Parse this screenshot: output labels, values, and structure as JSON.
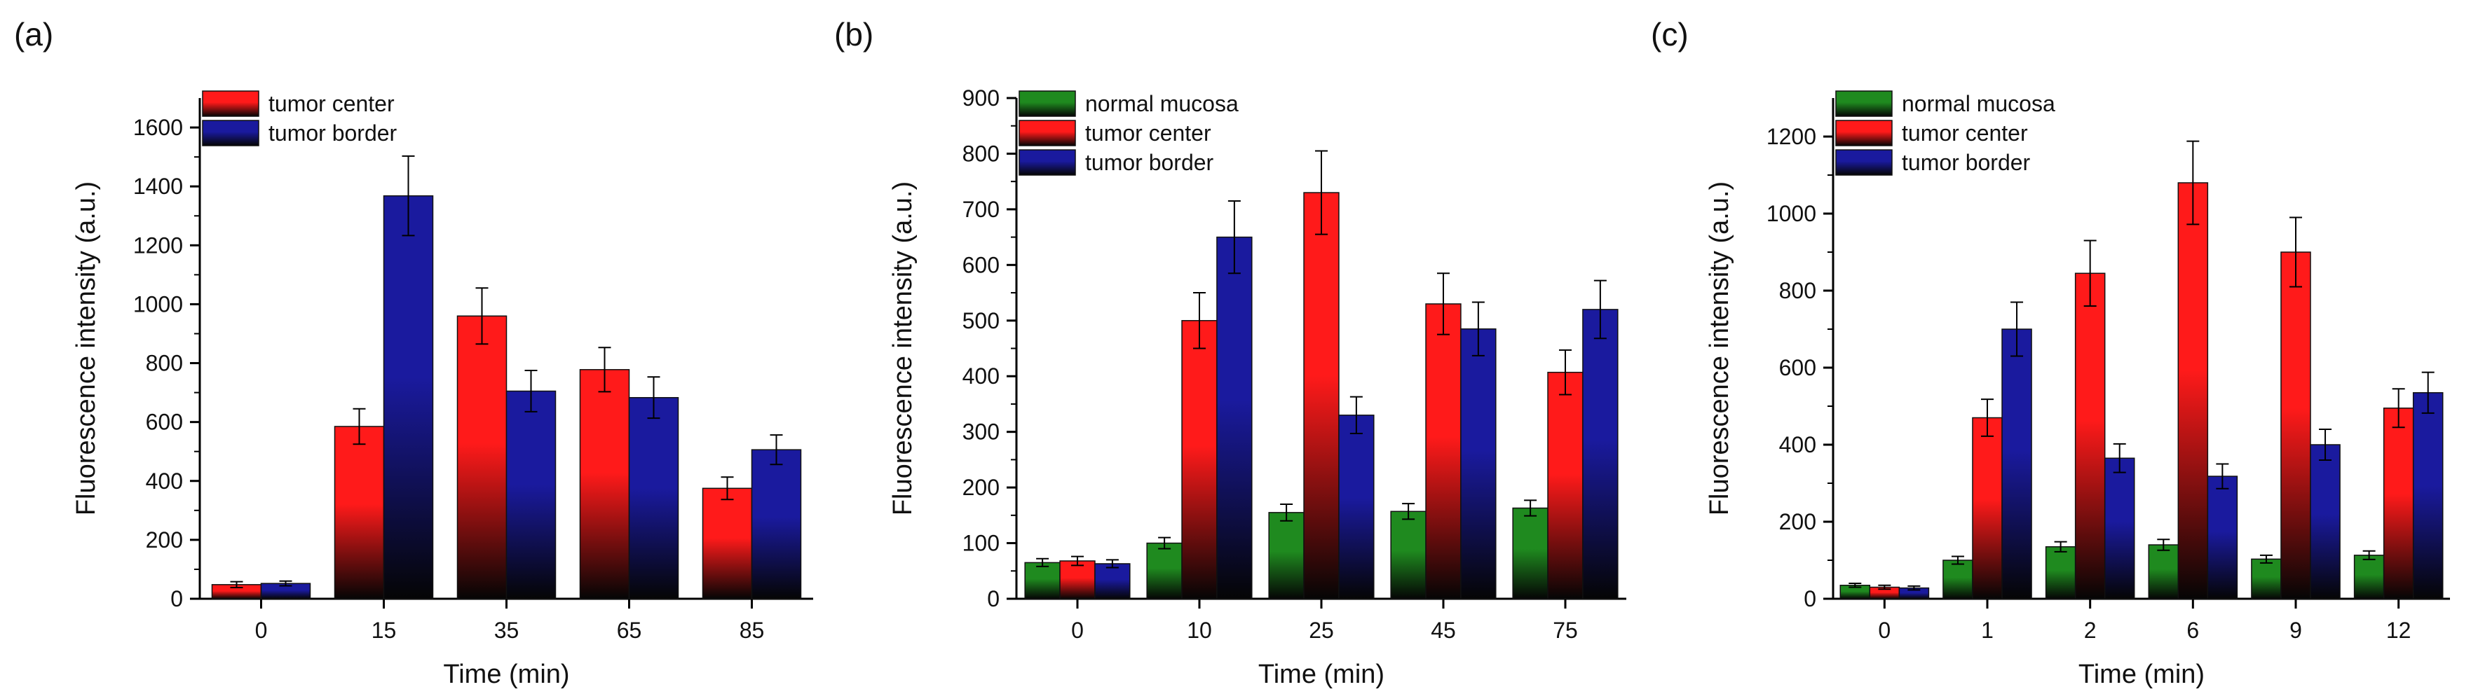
{
  "figure": {
    "panels": [
      "(a)",
      "(b)",
      "(c)"
    ]
  },
  "colors": {
    "normal mucosa": "#1f8a1f",
    "tumor center": "#ff1a1a",
    "tumor border": "#1a1a9e",
    "axis": "#000000"
  },
  "chart_data": [
    {
      "panel": "(a)",
      "type": "bar",
      "xlabel": "Time (min)",
      "ylabel": "Fluorescence intensity (a.u.)",
      "ylim": [
        0,
        1700
      ],
      "yticks": [
        0,
        200,
        400,
        600,
        800,
        1000,
        1200,
        1400,
        1600
      ],
      "categories": [
        "0",
        "15",
        "35",
        "65",
        "85"
      ],
      "legend_position": "top-left",
      "series": [
        {
          "name": "tumor center",
          "values": [
            48,
            585,
            960,
            778,
            375
          ],
          "errors": [
            10,
            60,
            95,
            75,
            38
          ]
        },
        {
          "name": "tumor border",
          "values": [
            52,
            1368,
            705,
            683,
            506
          ],
          "errors": [
            8,
            135,
            70,
            70,
            50
          ]
        }
      ]
    },
    {
      "panel": "(b)",
      "type": "bar",
      "xlabel": "Time (min)",
      "ylabel": "Fluorescence intensity (a.u.)",
      "ylim": [
        0,
        900
      ],
      "yticks": [
        0,
        100,
        200,
        300,
        400,
        500,
        600,
        700,
        800,
        900
      ],
      "categories": [
        "0",
        "10",
        "25",
        "45",
        "75"
      ],
      "legend_position": "top-left",
      "series": [
        {
          "name": "normal mucosa",
          "values": [
            65,
            100,
            155,
            157,
            163
          ],
          "errors": [
            7,
            10,
            15,
            14,
            14
          ]
        },
        {
          "name": "tumor center",
          "values": [
            68,
            500,
            730,
            530,
            407
          ],
          "errors": [
            8,
            50,
            75,
            55,
            40
          ]
        },
        {
          "name": "tumor border",
          "values": [
            63,
            650,
            330,
            485,
            520
          ],
          "errors": [
            7,
            65,
            33,
            48,
            52
          ]
        }
      ]
    },
    {
      "panel": "(c)",
      "type": "bar",
      "xlabel": "Time (min)",
      "ylabel": "Fluorescence intensity (a.u.)",
      "ylim": [
        0,
        1300
      ],
      "yticks": [
        0,
        200,
        400,
        600,
        800,
        1000,
        1200
      ],
      "categories": [
        "0",
        "1",
        "2",
        "6",
        "9",
        "12"
      ],
      "legend_position": "top-left",
      "series": [
        {
          "name": "normal mucosa",
          "values": [
            35,
            100,
            135,
            140,
            103,
            113
          ],
          "errors": [
            5,
            10,
            13,
            14,
            10,
            11
          ]
        },
        {
          "name": "tumor center",
          "values": [
            30,
            470,
            845,
            1080,
            900,
            495
          ],
          "errors": [
            5,
            48,
            85,
            108,
            90,
            50
          ]
        },
        {
          "name": "tumor border",
          "values": [
            28,
            700,
            365,
            318,
            400,
            535
          ],
          "errors": [
            5,
            70,
            37,
            32,
            40,
            53
          ]
        }
      ]
    }
  ]
}
